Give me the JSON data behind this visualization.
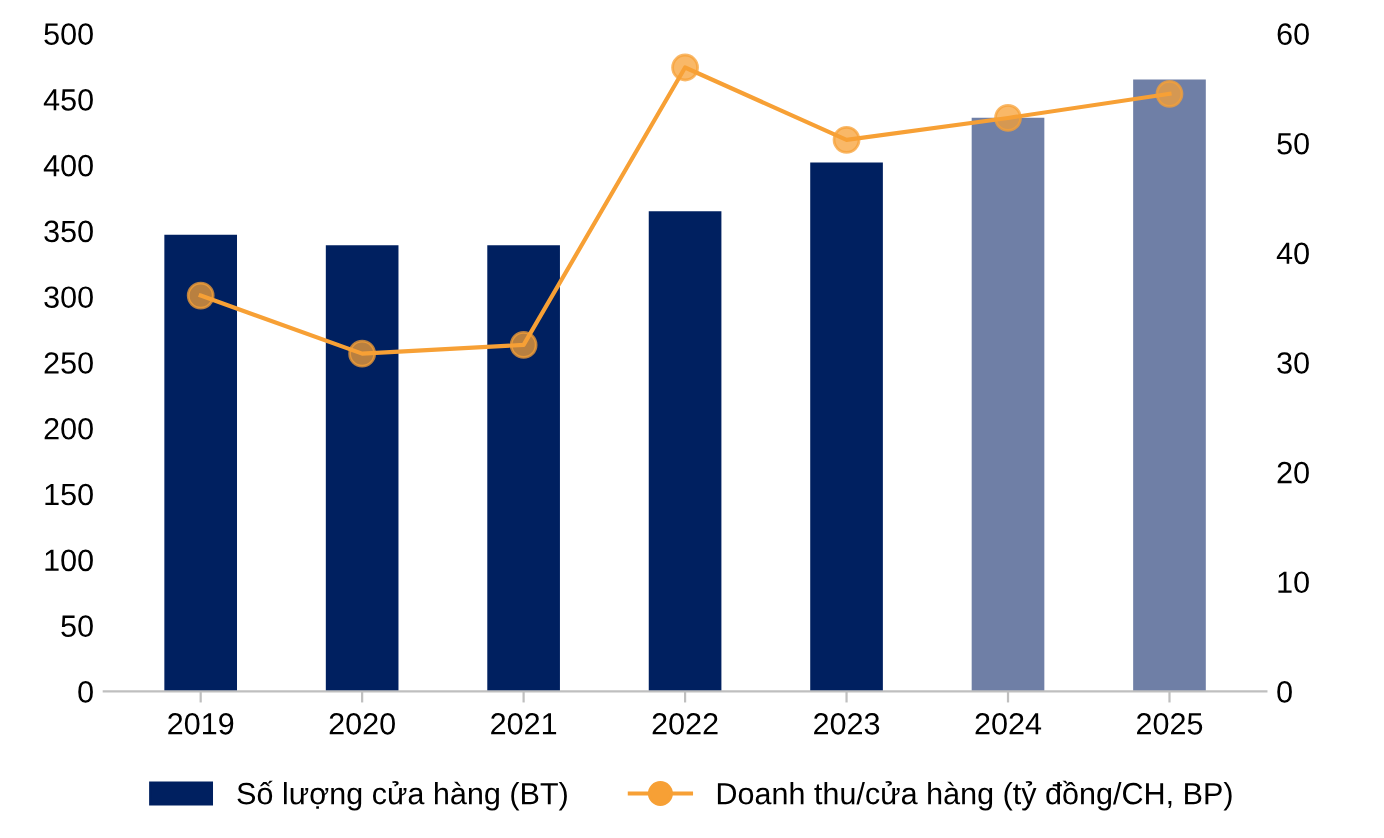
{
  "chart_data": {
    "type": "bar",
    "categories": [
      "2019",
      "2020",
      "2021",
      "2022",
      "2023",
      "2024",
      "2025"
    ],
    "series": [
      {
        "name": "Số lượng cửa hàng (BT)",
        "type": "bar",
        "colors": [
          "#002060",
          "#002060",
          "#002060",
          "#002060",
          "#002060",
          "#6f7fa6",
          "#6f7fa6"
        ],
        "color": "#002060",
        "values": [
          347,
          339,
          339,
          365,
          402,
          436,
          465
        ]
      },
      {
        "name": "Doanh thu/cửa hàng (tỷ đồng/CH, BP)",
        "type": "line",
        "axis": "y2",
        "color": "#f7a035",
        "marker": "circle",
        "values": [
          36.1,
          30.8,
          31.6,
          56.9,
          50.3,
          52.3,
          54.5
        ]
      }
    ],
    "ylim": [
      0,
      500
    ],
    "yticks": [
      0,
      50,
      100,
      150,
      200,
      250,
      300,
      350,
      400,
      450,
      500
    ],
    "y2lim": [
      0,
      60
    ],
    "y2ticks": [
      0,
      10,
      20,
      30,
      40,
      50,
      60
    ],
    "grid": false,
    "legend": "bottom"
  }
}
